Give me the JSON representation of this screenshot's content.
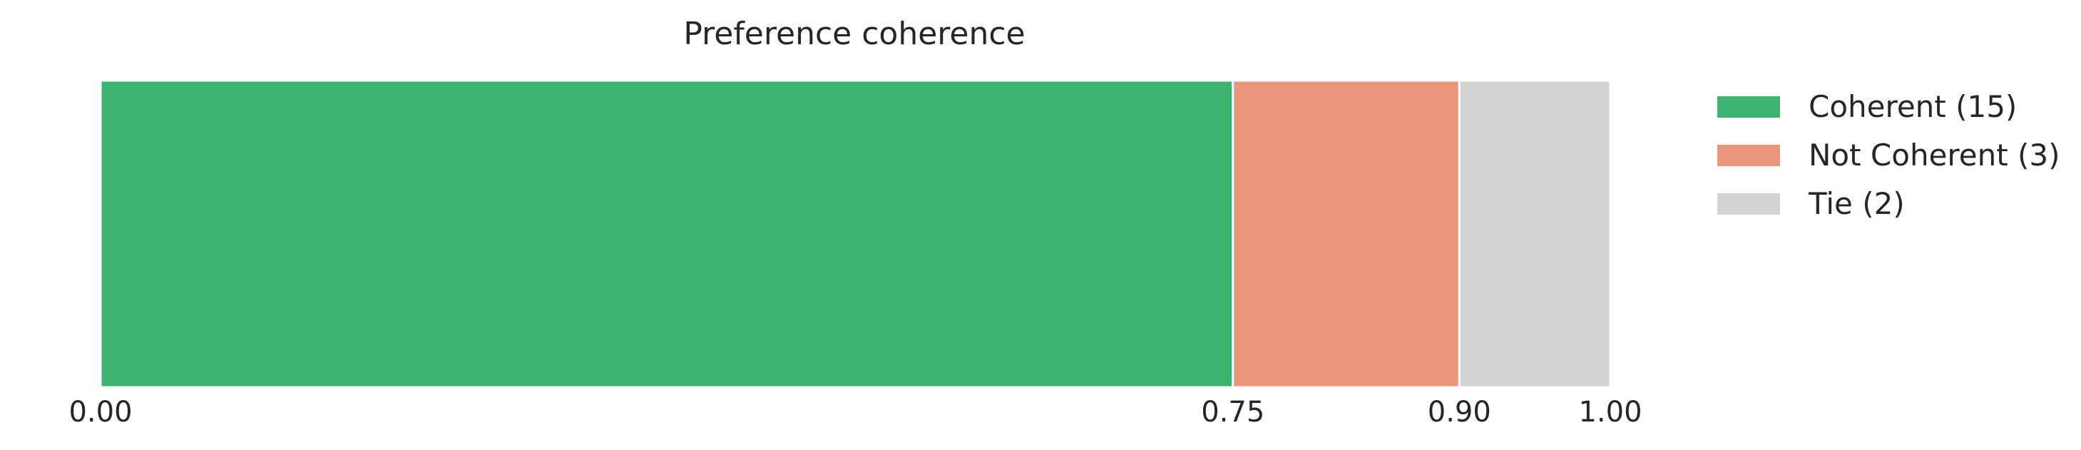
{
  "chart_data": {
    "type": "bar",
    "orientation": "horizontal",
    "stacked": true,
    "title": "Preference coherence",
    "xlabel": "",
    "ylabel": "",
    "xlim": [
      0,
      1
    ],
    "grid": false,
    "legend_position": "right",
    "series": [
      {
        "name": "Coherent (15)",
        "value": 0.75,
        "color": "#3cb371"
      },
      {
        "name": "Not Coherent (3)",
        "value": 0.15,
        "color": "#e9967a"
      },
      {
        "name": "Tie (2)",
        "value": 0.1,
        "color": "#d3d3d3"
      }
    ],
    "ticks": [
      {
        "value": 0.0,
        "label": "0.00"
      },
      {
        "value": 0.75,
        "label": "0.75"
      },
      {
        "value": 0.9,
        "label": "0.90"
      },
      {
        "value": 1.0,
        "label": "1.00"
      }
    ]
  }
}
